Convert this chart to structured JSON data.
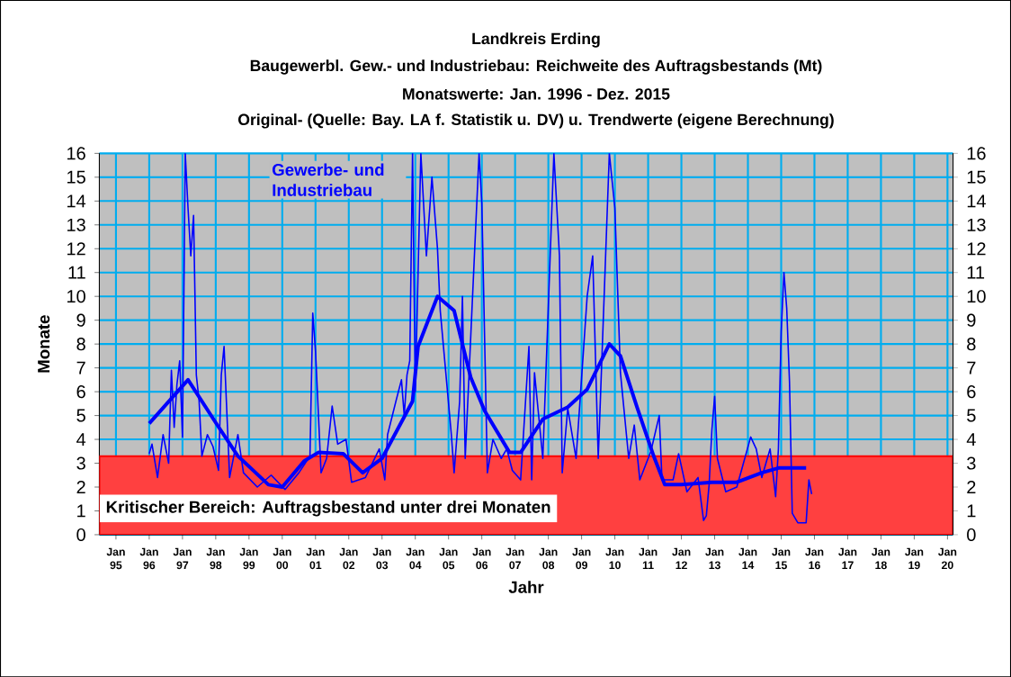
{
  "chart_data": {
    "type": "line",
    "title": "Landkreis Erding",
    "subtitle": "Baugewerbl. Gew.- und Industriebau:  Reichweite  des Auftragsbestands (Mt)",
    "annotations": [
      "Monatswerte: Jan. 1996 - Dez. 2015",
      "Original- (Quelle: Bay. LA f. Statistik u. DV) u. Trendwerte (eigene Berechnung)"
    ],
    "xlabel": "Jahr",
    "ylabel": "Monate",
    "xlim": [
      "1994-07",
      "2020-03"
    ],
    "ylim": [
      0,
      16
    ],
    "y2lim": [
      0,
      16
    ],
    "xticks": [
      {
        "value": "1995-01",
        "label": "Jan 95"
      },
      {
        "value": "1996-01",
        "label": "Jan 96"
      },
      {
        "value": "1997-01",
        "label": "Jan 97"
      },
      {
        "value": "1998-01",
        "label": "Jan 98"
      },
      {
        "value": "1999-01",
        "label": "Jan 99"
      },
      {
        "value": "2000-01",
        "label": "Jan 00"
      },
      {
        "value": "2001-01",
        "label": "Jan 01"
      },
      {
        "value": "2002-01",
        "label": "Jan 02"
      },
      {
        "value": "2003-01",
        "label": "Jan 03"
      },
      {
        "value": "2004-01",
        "label": "Jan 04"
      },
      {
        "value": "2005-01",
        "label": "Jan 05"
      },
      {
        "value": "2006-01",
        "label": "Jan 06"
      },
      {
        "value": "2007-01",
        "label": "Jan 07"
      },
      {
        "value": "2008-01",
        "label": "Jan 08"
      },
      {
        "value": "2009-01",
        "label": "Jan 09"
      },
      {
        "value": "2010-01",
        "label": "Jan 10"
      },
      {
        "value": "2011-01",
        "label": "Jan 11"
      },
      {
        "value": "2012-01",
        "label": "Jan 12"
      },
      {
        "value": "2013-01",
        "label": "Jan 13"
      },
      {
        "value": "2014-01",
        "label": "Jan 14"
      },
      {
        "value": "2015-01",
        "label": "Jan 15"
      },
      {
        "value": "2016-01",
        "label": "Jan 16"
      },
      {
        "value": "2017-01",
        "label": "Jan 17"
      },
      {
        "value": "2018-01",
        "label": "Jan 18"
      },
      {
        "value": "2019-01",
        "label": "Jan 19"
      },
      {
        "value": "2020-01",
        "label": "Jan 20"
      }
    ],
    "yticks": [
      0,
      1,
      2,
      3,
      4,
      5,
      6,
      7,
      8,
      9,
      10,
      11,
      12,
      13,
      14,
      15,
      16
    ],
    "y2ticks": [
      0,
      1,
      2,
      3,
      4,
      5,
      6,
      7,
      8,
      9,
      10,
      11,
      12,
      13,
      14,
      15,
      16
    ],
    "grid": true,
    "bands": [
      {
        "axis": "y",
        "from": 0,
        "to": 3.3,
        "label": "Kritischer Bereich: Auftragsbestand unter drei Monaten",
        "color": "#ff0000"
      }
    ],
    "series": [
      {
        "name": "Gewerbe- und Industriebau",
        "color": "#0000ff",
        "x": [
          "1996-01",
          "1996-02",
          "1996-04",
          "1996-06",
          "1996-08",
          "1996-09",
          "1996-10",
          "1996-11",
          "1996-12",
          "1997-01",
          "1997-02",
          "1997-03",
          "1997-04",
          "1997-05",
          "1997-06",
          "1997-07",
          "1997-08",
          "1997-10",
          "1997-12",
          "1998-02",
          "1998-03",
          "1998-04",
          "1998-06",
          "1998-09",
          "1998-11",
          "1999-04",
          "1999-09",
          "2000-02",
          "2000-07",
          "2000-11",
          "2000-12",
          "2001-01",
          "2001-03",
          "2001-05",
          "2001-07",
          "2001-09",
          "2001-12",
          "2002-02",
          "2002-07",
          "2002-12",
          "2003-02",
          "2003-03",
          "2003-06",
          "2003-08",
          "2003-09",
          "2003-10",
          "2003-11",
          "2003-12",
          "2004-01",
          "2004-03",
          "2004-05",
          "2004-07",
          "2004-09",
          "2004-10",
          "2005-02",
          "2005-03",
          "2005-05",
          "2005-06",
          "2005-07",
          "2005-12",
          "2006-01",
          "2006-03",
          "2006-05",
          "2006-08",
          "2006-10",
          "2006-12",
          "2007-03",
          "2007-06",
          "2007-07",
          "2007-08",
          "2007-11",
          "2008-03",
          "2008-05",
          "2008-06",
          "2008-08",
          "2008-11",
          "2009-03",
          "2009-05",
          "2009-07",
          "2009-11",
          "2010-01",
          "2010-03",
          "2010-06",
          "2010-08",
          "2010-10",
          "2011-02",
          "2011-05",
          "2011-06",
          "2011-10",
          "2011-12",
          "2012-03",
          "2012-07",
          "2012-09",
          "2012-10",
          "2012-11",
          "2012-12",
          "2013-01",
          "2013-02",
          "2013-05",
          "2013-09",
          "2014-02",
          "2014-04",
          "2014-06",
          "2014-09",
          "2014-11",
          "2014-12",
          "2015-01",
          "2015-02",
          "2015-03",
          "2015-04",
          "2015-05",
          "2015-07",
          "2015-10",
          "2015-11",
          "2015-12"
        ],
        "values": [
          3.4,
          3.8,
          2.4,
          4.2,
          3.0,
          6.9,
          4.5,
          6.3,
          7.3,
          4.1,
          16,
          13.7,
          11.7,
          13.4,
          6.7,
          5.6,
          3.3,
          4.2,
          3.7,
          2.7,
          6.7,
          7.9,
          2.4,
          4.2,
          2.6,
          2.0,
          2.5,
          1.9,
          2.6,
          3.3,
          9.3,
          7.7,
          2.6,
          3.2,
          5.4,
          3.8,
          4.0,
          2.2,
          2.4,
          3.6,
          2.3,
          4.2,
          5.6,
          6.5,
          5.0,
          6.7,
          7.3,
          16,
          6.0,
          16,
          11.7,
          15,
          12,
          9.4,
          4.2,
          2.6,
          5.6,
          10.0,
          3.2,
          16,
          13.9,
          2.6,
          4.0,
          3.2,
          3.6,
          2.7,
          2.3,
          7.9,
          2.3,
          6.8,
          3.2,
          16,
          11.7,
          2.6,
          5.3,
          3.2,
          10.0,
          11.7,
          3.2,
          16,
          13.7,
          6.8,
          3.2,
          4.6,
          2.3,
          3.5,
          5.0,
          2.3,
          2.3,
          3.4,
          1.8,
          2.4,
          0.6,
          0.8,
          2.1,
          4.4,
          5.8,
          3.2,
          1.8,
          2.0,
          4.1,
          3.6,
          2.4,
          3.6,
          1.6,
          3.6,
          8.5,
          11.0,
          9.5,
          6.4,
          0.9,
          0.5,
          0.5,
          2.3,
          1.7
        ]
      },
      {
        "color": "#0000ff",
        "x": [
          "1996-01",
          "1997-03",
          "1998-01",
          "1998-09",
          "1999-08",
          "2000-01",
          "2000-09",
          "2001-02",
          "2001-11",
          "2002-06",
          "2003-01",
          "2003-12",
          "2004-02",
          "2004-09",
          "2005-03",
          "2005-09",
          "2006-02",
          "2006-11",
          "2007-03",
          "2007-11",
          "2008-08",
          "2009-03",
          "2009-11",
          "2010-03",
          "2010-09",
          "2011-03",
          "2011-07",
          "2012-01",
          "2012-12",
          "2013-09",
          "2014-06",
          "2014-12",
          "2015-10"
        ],
        "values": [
          4.67,
          6.5,
          4.7,
          3.3,
          2.1,
          2.0,
          3.1,
          3.45,
          3.4,
          2.6,
          3.2,
          5.6,
          7.9,
          10.0,
          9.4,
          6.6,
          5.2,
          3.45,
          3.45,
          4.85,
          5.35,
          6.1,
          8.0,
          7.5,
          5.35,
          3.3,
          2.1,
          2.1,
          2.2,
          2.2,
          2.6,
          2.8,
          2.8
        ]
      }
    ]
  }
}
